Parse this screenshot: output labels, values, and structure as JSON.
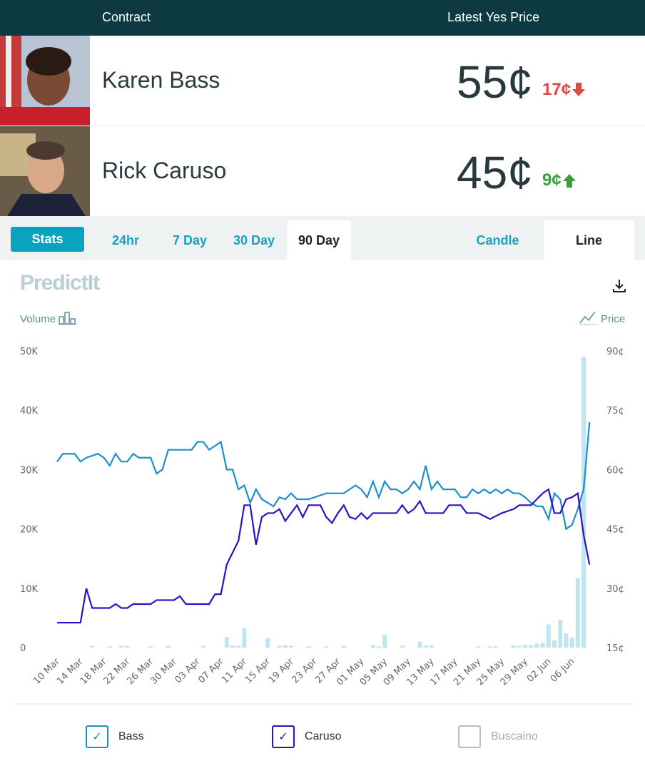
{
  "header": {
    "contract": "Contract",
    "latest": "Latest Yes Price"
  },
  "contracts": [
    {
      "name": "Karen Bass",
      "price": "55¢",
      "change": "17¢",
      "direction": "down",
      "color": "#e04848"
    },
    {
      "name": "Rick Caruso",
      "price": "45¢",
      "change": "9¢",
      "direction": "up",
      "color": "#3a9e3e"
    }
  ],
  "tabs": {
    "stats": "Stats",
    "periods": [
      "24hr",
      "7 Day",
      "30 Day",
      "90 Day"
    ],
    "active": "90 Day",
    "chart_types": [
      "Candle",
      "Line"
    ],
    "active_type": "Line"
  },
  "logo": "PredictIt",
  "volume_label": "Volume",
  "price_label": "Price",
  "legend": [
    {
      "name": "Bass",
      "checked": true,
      "color": "#1a8fcc"
    },
    {
      "name": "Caruso",
      "checked": true,
      "color": "#2a10c8"
    },
    {
      "name": "Buscaino",
      "checked": false,
      "color": "#aaaaaa"
    }
  ],
  "chart_data": {
    "type": "line",
    "x_unit": "day offset from 10 Mar",
    "xticks": [
      "10 Mar",
      "14 Mar",
      "18 Mar",
      "22 Mar",
      "26 Mar",
      "30 Mar",
      "03 Apr",
      "07 Apr",
      "11 Apr",
      "15 Apr",
      "19 Apr",
      "23 Apr",
      "27 Apr",
      "01 May",
      "05 May",
      "09 May",
      "13 May",
      "17 May",
      "21 May",
      "25 May",
      "29 May",
      "02 Jun",
      "06 Jun"
    ],
    "left_axis": {
      "label": "Volume",
      "ticks": [
        "0",
        "10K",
        "20K",
        "30K",
        "40K",
        "50K"
      ],
      "range": [
        0,
        50000
      ]
    },
    "right_axis": {
      "label": "Price",
      "ticks": [
        "15¢",
        "30¢",
        "45¢",
        "60¢",
        "75¢",
        "90¢"
      ],
      "range": [
        15,
        90
      ]
    },
    "series": [
      {
        "name": "Bass",
        "color": "#1a8fcc",
        "points": [
          [
            0,
            62
          ],
          [
            1,
            64
          ],
          [
            3,
            64
          ],
          [
            4,
            62
          ],
          [
            5,
            63
          ],
          [
            7,
            64
          ],
          [
            8,
            63
          ],
          [
            9,
            61
          ],
          [
            10,
            64
          ],
          [
            11,
            62
          ],
          [
            12,
            62
          ],
          [
            13,
            64
          ],
          [
            14,
            63
          ],
          [
            16,
            63
          ],
          [
            17,
            59
          ],
          [
            18,
            60
          ],
          [
            19,
            65
          ],
          [
            23,
            65
          ],
          [
            24,
            67
          ],
          [
            25,
            67
          ],
          [
            26,
            65
          ],
          [
            28,
            67
          ],
          [
            29,
            60
          ],
          [
            30,
            60
          ],
          [
            31,
            55
          ],
          [
            32,
            56
          ],
          [
            33,
            51.6
          ],
          [
            34,
            55
          ],
          [
            35,
            52.5
          ],
          [
            36,
            51.6
          ],
          [
            37,
            50.7
          ],
          [
            38,
            53
          ],
          [
            39,
            52.5
          ],
          [
            40,
            54
          ],
          [
            41,
            52.5
          ],
          [
            43,
            52.5
          ],
          [
            46,
            54
          ],
          [
            49,
            54
          ],
          [
            51,
            56
          ],
          [
            52,
            55
          ],
          [
            53,
            53
          ],
          [
            54,
            57
          ],
          [
            55,
            53
          ],
          [
            56,
            57
          ],
          [
            57,
            55
          ],
          [
            58,
            55
          ],
          [
            59,
            54
          ],
          [
            60,
            55
          ],
          [
            61,
            57
          ],
          [
            62,
            55
          ],
          [
            63,
            61
          ],
          [
            64,
            55
          ],
          [
            65,
            57
          ],
          [
            66,
            55
          ],
          [
            68,
            55
          ],
          [
            69,
            53
          ],
          [
            70,
            53
          ],
          [
            71,
            55
          ],
          [
            72,
            54
          ],
          [
            73,
            55
          ],
          [
            74,
            54
          ],
          [
            75,
            55
          ],
          [
            76,
            54
          ],
          [
            77,
            55
          ],
          [
            78,
            54
          ],
          [
            79,
            54
          ],
          [
            80,
            53
          ],
          [
            81,
            51.6
          ],
          [
            82,
            50.7
          ],
          [
            83,
            50.7
          ],
          [
            84,
            47.5
          ],
          [
            85,
            54
          ],
          [
            86,
            52.5
          ],
          [
            87,
            45
          ],
          [
            88,
            46
          ],
          [
            89,
            50
          ],
          [
            90,
            55
          ],
          [
            91,
            72
          ]
        ]
      },
      {
        "name": "Caruso",
        "color": "#2a10c8",
        "points": [
          [
            0,
            21.3
          ],
          [
            4,
            21.3
          ],
          [
            5,
            30
          ],
          [
            6,
            25
          ],
          [
            9,
            25
          ],
          [
            10,
            26
          ],
          [
            11,
            25
          ],
          [
            12,
            25
          ],
          [
            13,
            26
          ],
          [
            16,
            26
          ],
          [
            17,
            27
          ],
          [
            20,
            27
          ],
          [
            21,
            28
          ],
          [
            22,
            26
          ],
          [
            26,
            26
          ],
          [
            27,
            28.5
          ],
          [
            28,
            28.5
          ],
          [
            29,
            36
          ],
          [
            30,
            39
          ],
          [
            31,
            42
          ],
          [
            32,
            51
          ],
          [
            33,
            51
          ],
          [
            34,
            41
          ],
          [
            35,
            48
          ],
          [
            36,
            49
          ],
          [
            37,
            49
          ],
          [
            38,
            50
          ],
          [
            39,
            47
          ],
          [
            40,
            49
          ],
          [
            41,
            51
          ],
          [
            42,
            48
          ],
          [
            43,
            51
          ],
          [
            45,
            51
          ],
          [
            46,
            48
          ],
          [
            47,
            46.5
          ],
          [
            48,
            49
          ],
          [
            49,
            51
          ],
          [
            50,
            48
          ],
          [
            51,
            47.5
          ],
          [
            52,
            49
          ],
          [
            53,
            47.5
          ],
          [
            54,
            49
          ],
          [
            58,
            49
          ],
          [
            59,
            51
          ],
          [
            60,
            49
          ],
          [
            61,
            50
          ],
          [
            62,
            52
          ],
          [
            63,
            49
          ],
          [
            66,
            49
          ],
          [
            67,
            51
          ],
          [
            69,
            51
          ],
          [
            70,
            49
          ],
          [
            72,
            49
          ],
          [
            74,
            47.5
          ],
          [
            76,
            49
          ],
          [
            78,
            50
          ],
          [
            79,
            51
          ],
          [
            81,
            51
          ],
          [
            82,
            52.5
          ],
          [
            83,
            54
          ],
          [
            84,
            55
          ],
          [
            85,
            49
          ],
          [
            86,
            49
          ],
          [
            87,
            52.5
          ],
          [
            88,
            53
          ],
          [
            89,
            54
          ],
          [
            90,
            43.5
          ],
          [
            91,
            36
          ]
        ]
      }
    ],
    "volume": [
      [
        6,
        300
      ],
      [
        9,
        200
      ],
      [
        11,
        300
      ],
      [
        12,
        300
      ],
      [
        16,
        200
      ],
      [
        19,
        300
      ],
      [
        25,
        300
      ],
      [
        29,
        1800
      ],
      [
        30,
        400
      ],
      [
        31,
        300
      ],
      [
        32,
        3300
      ],
      [
        36,
        1600
      ],
      [
        38,
        300
      ],
      [
        39,
        400
      ],
      [
        40,
        300
      ],
      [
        43,
        200
      ],
      [
        46,
        200
      ],
      [
        49,
        300
      ],
      [
        54,
        400
      ],
      [
        55,
        200
      ],
      [
        56,
        2200
      ],
      [
        59,
        300
      ],
      [
        62,
        1000
      ],
      [
        63,
        400
      ],
      [
        64,
        400
      ],
      [
        72,
        200
      ],
      [
        74,
        200
      ],
      [
        75,
        200
      ],
      [
        78,
        400
      ],
      [
        79,
        300
      ],
      [
        80,
        500
      ],
      [
        81,
        400
      ],
      [
        82,
        700
      ],
      [
        83,
        800
      ],
      [
        84,
        3900
      ],
      [
        85,
        1200
      ],
      [
        86,
        4700
      ],
      [
        87,
        2400
      ],
      [
        88,
        1700
      ],
      [
        89,
        11700
      ],
      [
        90,
        49000
      ]
    ]
  }
}
